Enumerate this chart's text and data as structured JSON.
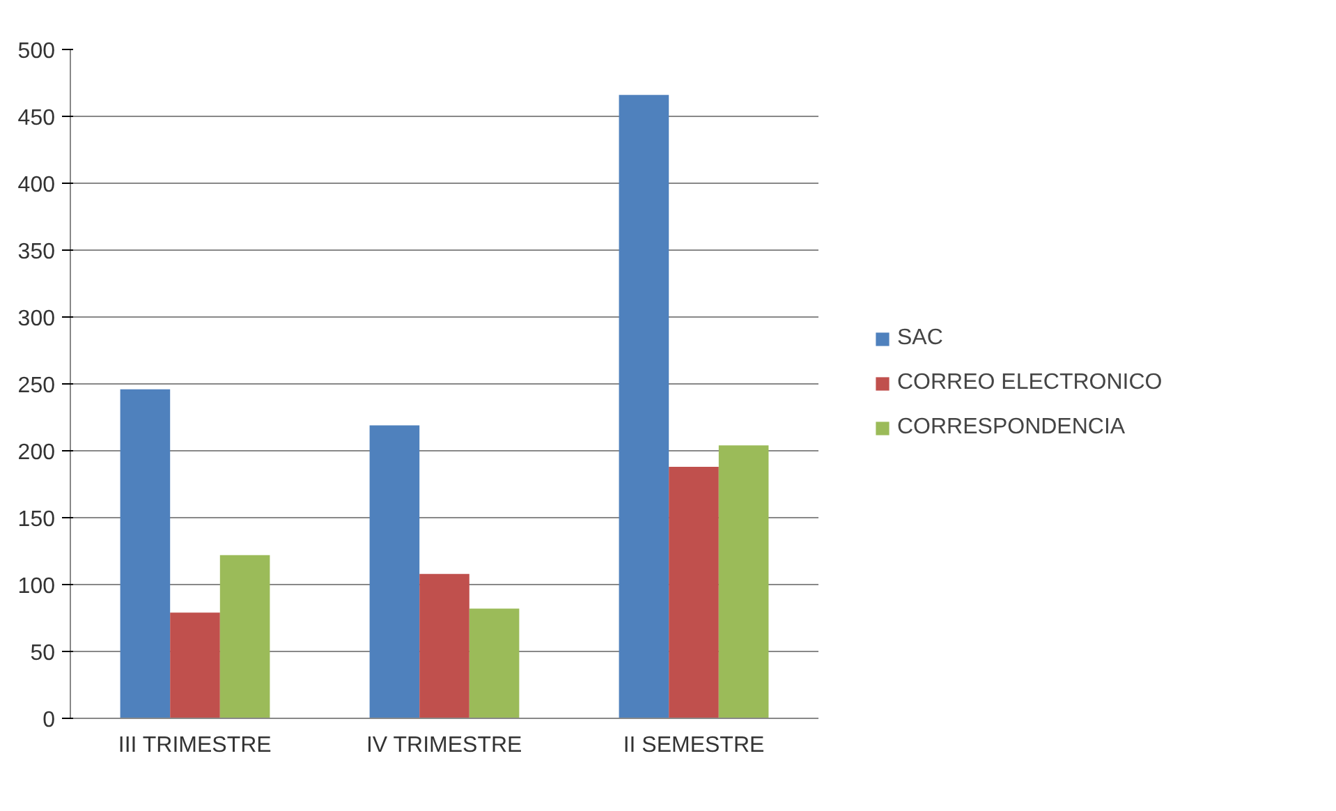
{
  "chart_data": {
    "type": "bar",
    "categories": [
      "III TRIMESTRE",
      "IV TRIMESTRE",
      "II SEMESTRE"
    ],
    "series": [
      {
        "name": "SAC",
        "color": "#4f81bd",
        "values": [
          246,
          219,
          466
        ]
      },
      {
        "name": "CORREO ELECTRONICO",
        "color": "#c0504d",
        "values": [
          79,
          108,
          188
        ]
      },
      {
        "name": "CORRESPONDENCIA",
        "color": "#9bbb59",
        "values": [
          122,
          82,
          204
        ]
      }
    ],
    "ylim": [
      0,
      500
    ],
    "yticks": [
      0,
      50,
      100,
      150,
      200,
      250,
      300,
      350,
      400,
      450,
      500
    ],
    "grid": "y",
    "legend": "right"
  }
}
